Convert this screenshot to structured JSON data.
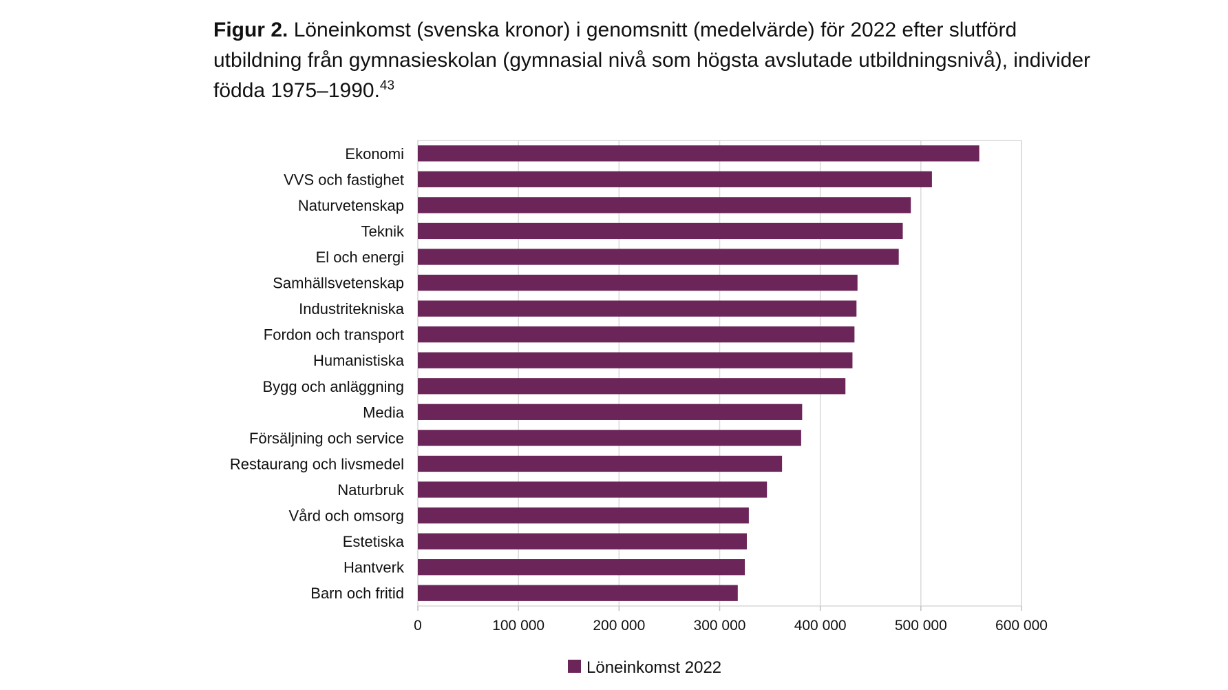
{
  "figure": {
    "label": "Figur 2.",
    "caption": "Löneinkomst (svenska kronor) i genomsnitt (medelvärde) för 2022 efter slutförd utbildning från gymnasieskolan (gymnasial nivå som högsta avslutade utbildningsnivå), individer födda 1975–1990.",
    "footnote_ref": "43"
  },
  "chart_data": {
    "type": "bar",
    "orientation": "horizontal",
    "categories": [
      "Ekonomi",
      "VVS och fastighet",
      "Naturvetenskap",
      "Teknik",
      "El och energi",
      "Samhällsvetenskap",
      "Industritekniska",
      "Fordon och transport",
      "Humanistiska",
      "Bygg och anläggning",
      "Media",
      "Försäljning och service",
      "Restaurang och livsmedel",
      "Naturbruk",
      "Vård och omsorg",
      "Estetiska",
      "Hantverk",
      "Barn och fritid"
    ],
    "series": [
      {
        "name": "Löneinkomst 2022",
        "color": "#6b2558",
        "values": [
          558000,
          511000,
          490000,
          482000,
          478000,
          437000,
          436000,
          434000,
          432000,
          425000,
          382000,
          381000,
          362000,
          347000,
          329000,
          327000,
          325000,
          318000
        ]
      }
    ],
    "xlim": [
      0,
      600000
    ],
    "x_ticks": [
      0,
      100000,
      200000,
      300000,
      400000,
      500000,
      600000
    ],
    "x_tick_labels": [
      "0",
      "100 000",
      "200 000",
      "300 000",
      "400 000",
      "500 000",
      "600 000"
    ],
    "grid": "vertical",
    "legend": "bottom",
    "xlabel": "",
    "ylabel": ""
  }
}
